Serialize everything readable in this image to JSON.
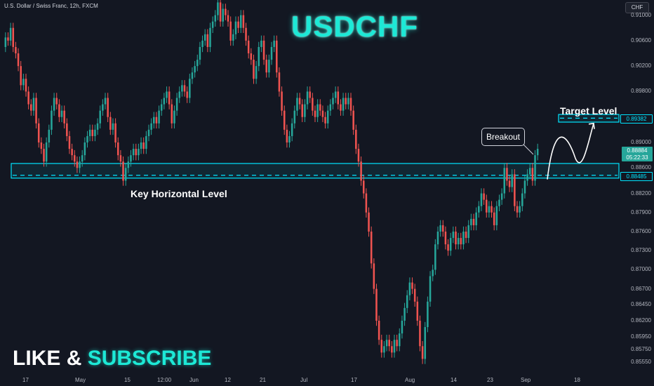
{
  "header": {
    "symbol_info": "U.S. Dollar / Swiss Franc, 12h, FXCM",
    "title": "USDCHF",
    "currency": "CHF"
  },
  "price_axis": {
    "labels": [
      "0.91000",
      "0.90600",
      "0.90200",
      "0.89800",
      "0.89382",
      "0.89000",
      "0.88884",
      "05:22:33",
      "0.88600",
      "0.88485",
      "0.88200",
      "0.87900",
      "0.87600",
      "0.87300",
      "0.87000",
      "0.86700",
      "0.86450",
      "0.86200",
      "0.85950",
      "0.85750",
      "0.85550"
    ],
    "target_tag": "0.89382",
    "current_price_tag": "0.88884",
    "countdown_tag": "05:22:33",
    "key_level_tag": "0.88485"
  },
  "time_axis": {
    "labels": [
      "17",
      "May",
      "15",
      "12:00",
      "Jun",
      "12",
      "21",
      "Jul",
      "17",
      "Aug",
      "14",
      "23",
      "Sep",
      "18"
    ]
  },
  "annotations": {
    "key_level_label": "Key Horizontal Level",
    "target_label": "Target Level",
    "breakout_label": "Breakout"
  },
  "cta": {
    "like": "LIKE",
    "amp": "&",
    "subscribe": "SUBSCRIBE"
  },
  "colors": {
    "background": "#131722",
    "up_candle": "#26a69a",
    "down_candle": "#ef5350",
    "accent": "#1de9d6",
    "box_border": "#00e5ff"
  },
  "chart_data": {
    "type": "candlestick",
    "ylim": [
      0.8545,
      0.9115
    ],
    "close": [
      0.9065,
      0.906,
      0.908,
      0.905,
      0.904,
      0.902,
      0.899,
      0.9,
      0.898,
      0.896,
      0.895,
      0.897,
      0.893,
      0.89,
      0.889,
      0.887,
      0.89,
      0.892,
      0.895,
      0.897,
      0.896,
      0.894,
      0.895,
      0.893,
      0.891,
      0.889,
      0.888,
      0.887,
      0.886,
      0.887,
      0.888,
      0.89,
      0.891,
      0.892,
      0.891,
      0.892,
      0.893,
      0.895,
      0.896,
      0.897,
      0.894,
      0.892,
      0.893,
      0.89,
      0.888,
      0.887,
      0.884,
      0.886,
      0.887,
      0.888,
      0.889,
      0.888,
      0.889,
      0.89,
      0.889,
      0.891,
      0.892,
      0.893,
      0.894,
      0.893,
      0.895,
      0.896,
      0.897,
      0.898,
      0.896,
      0.893,
      0.895,
      0.897,
      0.898,
      0.899,
      0.898,
      0.897,
      0.9,
      0.901,
      0.902,
      0.903,
      0.905,
      0.906,
      0.907,
      0.905,
      0.908,
      0.909,
      0.91,
      0.912,
      0.909,
      0.911,
      0.91,
      0.909,
      0.906,
      0.907,
      0.909,
      0.908,
      0.91,
      0.908,
      0.906,
      0.904,
      0.903,
      0.9,
      0.902,
      0.905,
      0.906,
      0.903,
      0.901,
      0.903,
      0.905,
      0.906,
      0.901,
      0.898,
      0.895,
      0.892,
      0.89,
      0.891,
      0.893,
      0.895,
      0.897,
      0.896,
      0.894,
      0.896,
      0.898,
      0.897,
      0.895,
      0.894,
      0.896,
      0.895,
      0.894,
      0.893,
      0.895,
      0.896,
      0.897,
      0.898,
      0.896,
      0.895,
      0.897,
      0.896,
      0.897,
      0.895,
      0.892,
      0.889,
      0.887,
      0.884,
      0.882,
      0.879,
      0.876,
      0.871,
      0.867,
      0.862,
      0.859,
      0.857,
      0.858,
      0.859,
      0.858,
      0.857,
      0.859,
      0.858,
      0.86,
      0.862,
      0.864,
      0.866,
      0.868,
      0.867,
      0.865,
      0.862,
      0.858,
      0.856,
      0.861,
      0.865,
      0.869,
      0.87,
      0.874,
      0.876,
      0.877,
      0.876,
      0.874,
      0.873,
      0.875,
      0.876,
      0.874,
      0.875,
      0.874,
      0.876,
      0.875,
      0.877,
      0.878,
      0.877,
      0.879,
      0.88,
      0.882,
      0.881,
      0.879,
      0.88,
      0.879,
      0.877,
      0.88,
      0.881,
      0.882,
      0.886,
      0.884,
      0.883,
      0.885,
      0.88,
      0.879,
      0.88,
      0.882,
      0.884,
      0.885,
      0.886,
      0.884,
      0.888,
      0.889
    ],
    "open": [
      0.905,
      0.9065,
      0.906,
      0.908,
      0.905,
      0.904,
      0.902,
      0.899,
      0.9,
      0.898,
      0.896,
      0.895,
      0.897,
      0.893,
      0.89,
      0.889,
      0.887,
      0.89,
      0.892,
      0.895,
      0.897,
      0.896,
      0.894,
      0.895,
      0.893,
      0.891,
      0.889,
      0.888,
      0.887,
      0.886,
      0.887,
      0.888,
      0.89,
      0.891,
      0.892,
      0.891,
      0.892,
      0.893,
      0.895,
      0.896,
      0.897,
      0.894,
      0.892,
      0.893,
      0.89,
      0.888,
      0.887,
      0.884,
      0.886,
      0.887,
      0.888,
      0.889,
      0.888,
      0.889,
      0.89,
      0.889,
      0.891,
      0.892,
      0.893,
      0.894,
      0.893,
      0.895,
      0.896,
      0.897,
      0.898,
      0.896,
      0.893,
      0.895,
      0.897,
      0.898,
      0.899,
      0.898,
      0.897,
      0.9,
      0.901,
      0.902,
      0.903,
      0.905,
      0.906,
      0.907,
      0.905,
      0.908,
      0.909,
      0.91,
      0.912,
      0.909,
      0.911,
      0.91,
      0.909,
      0.906,
      0.907,
      0.909,
      0.908,
      0.91,
      0.908,
      0.906,
      0.904,
      0.903,
      0.9,
      0.902,
      0.905,
      0.906,
      0.903,
      0.901,
      0.903,
      0.905,
      0.906,
      0.901,
      0.898,
      0.895,
      0.892,
      0.89,
      0.891,
      0.893,
      0.895,
      0.897,
      0.896,
      0.894,
      0.896,
      0.898,
      0.897,
      0.895,
      0.894,
      0.896,
      0.895,
      0.894,
      0.893,
      0.895,
      0.896,
      0.897,
      0.898,
      0.896,
      0.895,
      0.897,
      0.896,
      0.897,
      0.895,
      0.892,
      0.889,
      0.887,
      0.884,
      0.882,
      0.879,
      0.876,
      0.871,
      0.867,
      0.862,
      0.859,
      0.857,
      0.858,
      0.859,
      0.858,
      0.857,
      0.859,
      0.858,
      0.86,
      0.862,
      0.864,
      0.866,
      0.868,
      0.867,
      0.865,
      0.862,
      0.858,
      0.856,
      0.861,
      0.865,
      0.869,
      0.87,
      0.874,
      0.876,
      0.877,
      0.876,
      0.874,
      0.873,
      0.875,
      0.876,
      0.874,
      0.875,
      0.874,
      0.876,
      0.875,
      0.877,
      0.878,
      0.877,
      0.879,
      0.88,
      0.882,
      0.881,
      0.879,
      0.88,
      0.879,
      0.877,
      0.88,
      0.881,
      0.882,
      0.886,
      0.884,
      0.883,
      0.885,
      0.88,
      0.879,
      0.88,
      0.882,
      0.884,
      0.885,
      0.886,
      0.884,
      0.888
    ],
    "key_level": {
      "low": 0.8844,
      "high": 0.8867,
      "mid": 0.88485
    },
    "target_level": {
      "low": 0.8932,
      "high": 0.8944,
      "mid": 0.89382
    }
  }
}
